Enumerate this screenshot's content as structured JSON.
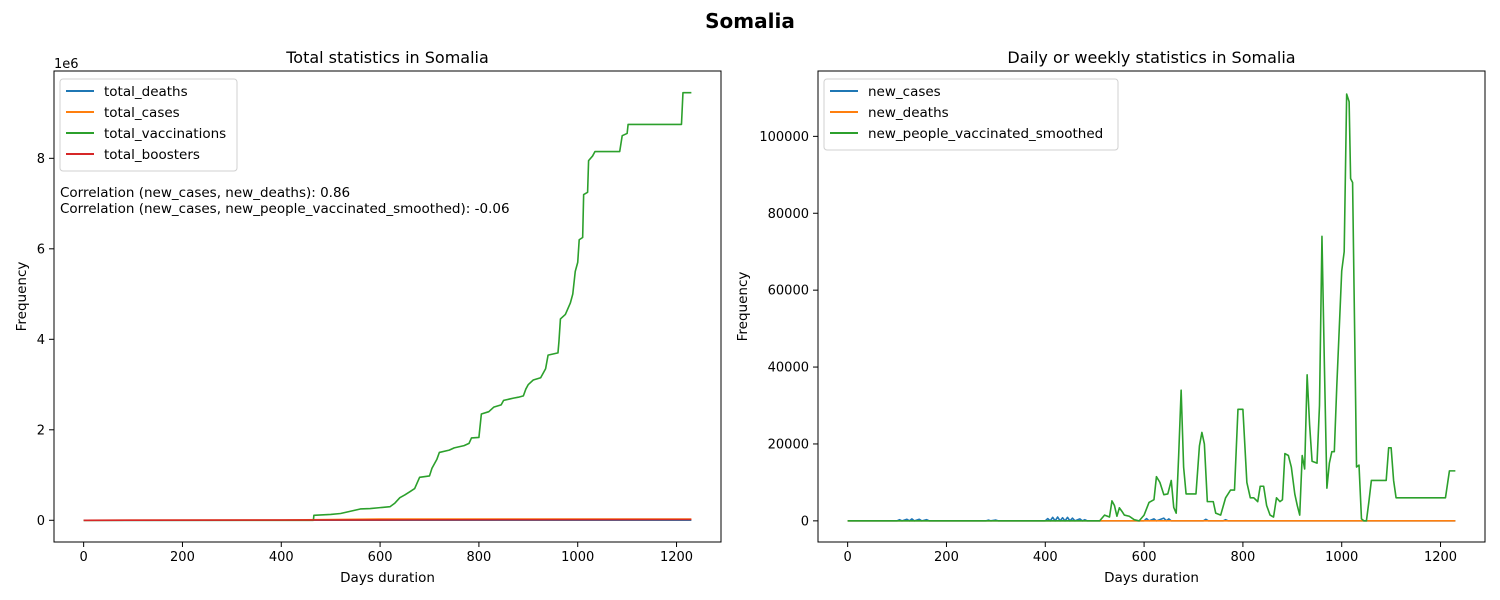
{
  "figure": {
    "title": "Somalia"
  },
  "chart_data": [
    {
      "type": "line",
      "title": "Total statistics in Somalia",
      "xlabel": "Days duration",
      "ylabel": "Frequency",
      "xlim": [
        -60,
        1290
      ],
      "ylim": [
        -480000,
        9930000
      ],
      "x_ticks": [
        0,
        200,
        400,
        600,
        800,
        1000,
        1200
      ],
      "y_ticks": [
        0,
        2000000,
        4000000,
        6000000,
        8000000
      ],
      "y_tick_labels": [
        "0",
        "2",
        "4",
        "6",
        "8"
      ],
      "y_scale_label": "1e6",
      "legend_position": "top-left",
      "annotations": [
        "Correlation (new_cases, new_deaths): 0.86",
        "Correlation (new_cases, new_people_vaccinated_smoothed): -0.06"
      ],
      "series": [
        {
          "name": "total_deaths",
          "color": "#1f77b4",
          "points": [
            [
              0,
              0
            ],
            [
              1230,
              2400
            ]
          ]
        },
        {
          "name": "total_cases",
          "color": "#ff7f0e",
          "points": [
            [
              0,
              0
            ],
            [
              400,
              4800
            ],
            [
              600,
              26000
            ],
            [
              800,
              27300
            ],
            [
              1230,
              27300
            ]
          ]
        },
        {
          "name": "total_vaccinations",
          "color": "#2ca02c",
          "points": [
            [
              0,
              0
            ],
            [
              465,
              0
            ],
            [
              466,
              110000
            ],
            [
              500,
              130000
            ],
            [
              520,
              150000
            ],
            [
              540,
              200000
            ],
            [
              560,
              250000
            ],
            [
              580,
              260000
            ],
            [
              600,
              280000
            ],
            [
              620,
              300000
            ],
            [
              630,
              380000
            ],
            [
              640,
              500000
            ],
            [
              650,
              560000
            ],
            [
              660,
              630000
            ],
            [
              670,
              700000
            ],
            [
              680,
              950000
            ],
            [
              700,
              980000
            ],
            [
              705,
              1150000
            ],
            [
              715,
              1350000
            ],
            [
              720,
              1500000
            ],
            [
              740,
              1550000
            ],
            [
              750,
              1600000
            ],
            [
              770,
              1650000
            ],
            [
              780,
              1700000
            ],
            [
              785,
              1820000
            ],
            [
              800,
              1830000
            ],
            [
              805,
              2350000
            ],
            [
              820,
              2400000
            ],
            [
              830,
              2500000
            ],
            [
              845,
              2550000
            ],
            [
              850,
              2650000
            ],
            [
              870,
              2700000
            ],
            [
              880,
              2720000
            ],
            [
              890,
              2750000
            ],
            [
              895,
              2900000
            ],
            [
              900,
              3000000
            ],
            [
              910,
              3100000
            ],
            [
              925,
              3150000
            ],
            [
              935,
              3350000
            ],
            [
              940,
              3650000
            ],
            [
              960,
              3700000
            ],
            [
              962,
              3950000
            ],
            [
              965,
              4450000
            ],
            [
              975,
              4550000
            ],
            [
              985,
              4800000
            ],
            [
              990,
              5000000
            ],
            [
              995,
              5500000
            ],
            [
              1000,
              5700000
            ],
            [
              1003,
              6200000
            ],
            [
              1010,
              6250000
            ],
            [
              1012,
              7200000
            ],
            [
              1020,
              7250000
            ],
            [
              1022,
              7950000
            ],
            [
              1030,
              8050000
            ],
            [
              1035,
              8150000
            ],
            [
              1085,
              8150000
            ],
            [
              1090,
              8500000
            ],
            [
              1100,
              8550000
            ],
            [
              1102,
              8750000
            ],
            [
              1210,
              8750000
            ],
            [
              1213,
              9450000
            ],
            [
              1230,
              9450000
            ]
          ]
        },
        {
          "name": "total_boosters",
          "color": "#d62728",
          "points": [
            [
              0,
              0
            ],
            [
              650,
              9000
            ],
            [
              900,
              14000
            ],
            [
              1230,
              17000
            ]
          ]
        }
      ]
    },
    {
      "type": "line",
      "title": "Daily or weekly statistics in Somalia",
      "xlabel": "Days duration",
      "ylabel": "Frequency",
      "xlim": [
        -60,
        1290
      ],
      "ylim": [
        -5500,
        117000
      ],
      "x_ticks": [
        0,
        200,
        400,
        600,
        800,
        1000,
        1200
      ],
      "y_ticks": [
        0,
        20000,
        40000,
        60000,
        80000,
        100000
      ],
      "y_tick_labels": [
        "0",
        "20000",
        "40000",
        "60000",
        "80000",
        "100000"
      ],
      "legend_position": "top-left",
      "series": [
        {
          "name": "new_cases",
          "color": "#1f77b4",
          "points": [
            [
              0,
              0
            ],
            [
              100,
              0
            ],
            [
              105,
              300
            ],
            [
              110,
              0
            ],
            [
              120,
              400
            ],
            [
              125,
              0
            ],
            [
              130,
              500
            ],
            [
              135,
              0
            ],
            [
              145,
              400
            ],
            [
              150,
              0
            ],
            [
              160,
              300
            ],
            [
              165,
              0
            ],
            [
              280,
              0
            ],
            [
              285,
              200
            ],
            [
              290,
              0
            ],
            [
              300,
              200
            ],
            [
              305,
              0
            ],
            [
              400,
              0
            ],
            [
              405,
              600
            ],
            [
              410,
              0
            ],
            [
              415,
              900
            ],
            [
              420,
              0
            ],
            [
              425,
              1000
            ],
            [
              430,
              0
            ],
            [
              435,
              800
            ],
            [
              440,
              0
            ],
            [
              445,
              900
            ],
            [
              450,
              0
            ],
            [
              455,
              700
            ],
            [
              460,
              0
            ],
            [
              470,
              500
            ],
            [
              475,
              0
            ],
            [
              480,
              300
            ],
            [
              485,
              0
            ],
            [
              600,
              0
            ],
            [
              605,
              600
            ],
            [
              610,
              0
            ],
            [
              620,
              500
            ],
            [
              625,
              0
            ],
            [
              640,
              700
            ],
            [
              645,
              0
            ],
            [
              650,
              500
            ],
            [
              655,
              0
            ],
            [
              720,
              0
            ],
            [
              725,
              400
            ],
            [
              730,
              0
            ],
            [
              760,
              0
            ],
            [
              765,
              300
            ],
            [
              770,
              0
            ],
            [
              1230,
              0
            ]
          ]
        },
        {
          "name": "new_deaths",
          "color": "#ff7f0e",
          "points": [
            [
              0,
              0
            ],
            [
              1230,
              0
            ]
          ]
        },
        {
          "name": "new_people_vaccinated_smoothed",
          "color": "#2ca02c",
          "points": [
            [
              0,
              0
            ],
            [
              510,
              0
            ],
            [
              520,
              1500
            ],
            [
              530,
              1000
            ],
            [
              535,
              5200
            ],
            [
              540,
              4000
            ],
            [
              545,
              1200
            ],
            [
              550,
              3400
            ],
            [
              555,
              2500
            ],
            [
              560,
              1500
            ],
            [
              570,
              1200
            ],
            [
              580,
              300
            ],
            [
              590,
              0
            ],
            [
              600,
              1500
            ],
            [
              610,
              4800
            ],
            [
              620,
              5500
            ],
            [
              625,
              11500
            ],
            [
              632,
              10000
            ],
            [
              640,
              6800
            ],
            [
              648,
              7000
            ],
            [
              655,
              10500
            ],
            [
              660,
              3500
            ],
            [
              665,
              2000
            ],
            [
              670,
              17000
            ],
            [
              675,
              34000
            ],
            [
              680,
              14000
            ],
            [
              685,
              7000
            ],
            [
              695,
              7000
            ],
            [
              705,
              7000
            ],
            [
              712,
              19500
            ],
            [
              717,
              23000
            ],
            [
              722,
              20000
            ],
            [
              728,
              5000
            ],
            [
              740,
              5000
            ],
            [
              745,
              2000
            ],
            [
              755,
              1500
            ],
            [
              765,
              6000
            ],
            [
              775,
              8000
            ],
            [
              783,
              8000
            ],
            [
              790,
              29000
            ],
            [
              800,
              29000
            ],
            [
              808,
              10000
            ],
            [
              815,
              6000
            ],
            [
              822,
              6000
            ],
            [
              830,
              5000
            ],
            [
              835,
              9000
            ],
            [
              842,
              9000
            ],
            [
              848,
              4000
            ],
            [
              855,
              1500
            ],
            [
              862,
              1000
            ],
            [
              868,
              6000
            ],
            [
              875,
              5000
            ],
            [
              880,
              5500
            ],
            [
              885,
              17500
            ],
            [
              892,
              17000
            ],
            [
              898,
              14000
            ],
            [
              905,
              7000
            ],
            [
              910,
              4000
            ],
            [
              915,
              1500
            ],
            [
              920,
              17000
            ],
            [
              925,
              13500
            ],
            [
              930,
              38000
            ],
            [
              935,
              25000
            ],
            [
              940,
              15500
            ],
            [
              950,
              15000
            ],
            [
              955,
              30000
            ],
            [
              960,
              74000
            ],
            [
              965,
              40000
            ],
            [
              970,
              8500
            ],
            [
              975,
              15000
            ],
            [
              980,
              18000
            ],
            [
              985,
              18000
            ],
            [
              990,
              35000
            ],
            [
              995,
              50000
            ],
            [
              1000,
              65000
            ],
            [
              1005,
              70000
            ],
            [
              1010,
              111000
            ],
            [
              1015,
              109000
            ],
            [
              1018,
              89000
            ],
            [
              1022,
              88000
            ],
            [
              1025,
              60000
            ],
            [
              1030,
              14000
            ],
            [
              1035,
              14500
            ],
            [
              1040,
              500
            ],
            [
              1045,
              0
            ],
            [
              1050,
              0
            ],
            [
              1055,
              5000
            ],
            [
              1060,
              10500
            ],
            [
              1070,
              10500
            ],
            [
              1080,
              10500
            ],
            [
              1090,
              10500
            ],
            [
              1095,
              19000
            ],
            [
              1100,
              19000
            ],
            [
              1105,
              10500
            ],
            [
              1110,
              6000
            ],
            [
              1210,
              6000
            ],
            [
              1218,
              13000
            ],
            [
              1230,
              13000
            ]
          ]
        }
      ]
    }
  ]
}
